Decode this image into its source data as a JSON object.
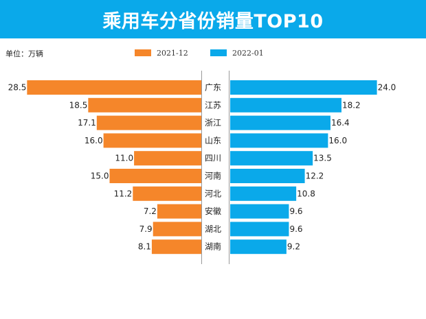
{
  "chart_data": {
    "type": "bar",
    "orientation": "horizontal-butterfly",
    "title": "乘用车分省份销量TOP10",
    "unit_label": "单位：万辆",
    "categories": [
      "广东",
      "江苏",
      "浙江",
      "山东",
      "四川",
      "河南",
      "河北",
      "安徽",
      "湖北",
      "湖南"
    ],
    "series": [
      {
        "name": "2021-12",
        "color": "#f5862a",
        "side": "left",
        "values": [
          28.5,
          18.5,
          17.1,
          16.0,
          11.0,
          15.0,
          11.2,
          7.2,
          7.9,
          8.1
        ]
      },
      {
        "name": "2022-01",
        "color": "#0aa9ea",
        "side": "right",
        "values": [
          24.0,
          18.2,
          16.4,
          16.0,
          13.5,
          12.2,
          10.8,
          9.6,
          9.6,
          9.2
        ]
      }
    ],
    "legend_position": "top-center",
    "grid": false
  }
}
